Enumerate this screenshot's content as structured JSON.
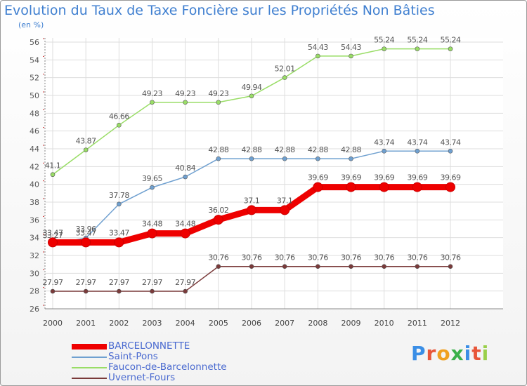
{
  "title": "Evolution du Taux de Taxe Foncière sur les Propriétés Non Bâties",
  "subtitle": "(en %)",
  "logo": "Proxiti",
  "chart_data": {
    "type": "line",
    "title": "Evolution du Taux de Taxe Foncière sur les Propriétés Non Bâties",
    "ylabel": "(en %)",
    "xlabel": "",
    "x": [
      "2000",
      "2001",
      "2002",
      "2003",
      "2004",
      "2005",
      "2006",
      "2007",
      "2008",
      "2009",
      "2010",
      "2011",
      "2012"
    ],
    "ylim": [
      26,
      56
    ],
    "yticks": [
      26,
      28,
      30,
      32,
      34,
      36,
      38,
      40,
      42,
      44,
      46,
      48,
      50,
      52,
      54,
      56
    ],
    "grid": true,
    "legend_position": "bottom-left",
    "series": [
      {
        "name": "BARCELONNETTE",
        "color": "#ee0000",
        "values": [
          33.47,
          33.47,
          33.47,
          34.48,
          34.48,
          36.02,
          37.1,
          37.1,
          39.69,
          39.69,
          39.69,
          39.69,
          39.69
        ],
        "labels": [
          "33.47",
          "33.47",
          "33.47",
          "34.48",
          "34.48",
          "36.02",
          "37.1",
          "37.1",
          "39.69",
          "39.69",
          "39.69",
          "39.69",
          "39.69"
        ]
      },
      {
        "name": "Saint-Pons",
        "color": "#6fa0d0",
        "values": [
          33.27,
          33.96,
          37.78,
          39.65,
          40.84,
          42.88,
          42.88,
          42.88,
          42.88,
          42.88,
          43.74,
          43.74,
          43.74
        ],
        "labels": [
          "33.27",
          "33.96",
          "37.78",
          "39.65",
          "40.84",
          "42.88",
          "42.88",
          "42.88",
          "42.88",
          "42.88",
          "43.74",
          "43.74",
          "43.74"
        ]
      },
      {
        "name": "Faucon-de-Barcelonnette",
        "color": "#99dd66",
        "values": [
          41.1,
          43.87,
          46.66,
          49.23,
          49.23,
          49.23,
          49.94,
          52.01,
          54.43,
          54.43,
          55.24,
          55.24,
          55.24
        ],
        "labels": [
          "41.1",
          "43.87",
          "46.66",
          "49.23",
          "49.23",
          "49.23",
          "49.94",
          "52.01",
          "54.43",
          "54.43",
          "55.24",
          "55.24",
          "55.24"
        ]
      },
      {
        "name": "Uvernet-Fours",
        "color": "#7a3a3a",
        "values": [
          27.97,
          27.97,
          27.97,
          27.97,
          27.97,
          30.76,
          30.76,
          30.76,
          30.76,
          30.76,
          30.76,
          30.76,
          30.76
        ],
        "labels": [
          "27.97",
          "27.97",
          "27.97",
          "27.97",
          "27.97",
          "30.76",
          "30.76",
          "30.76",
          "30.76",
          "30.76",
          "30.76",
          "30.76",
          "30.76"
        ]
      }
    ]
  }
}
